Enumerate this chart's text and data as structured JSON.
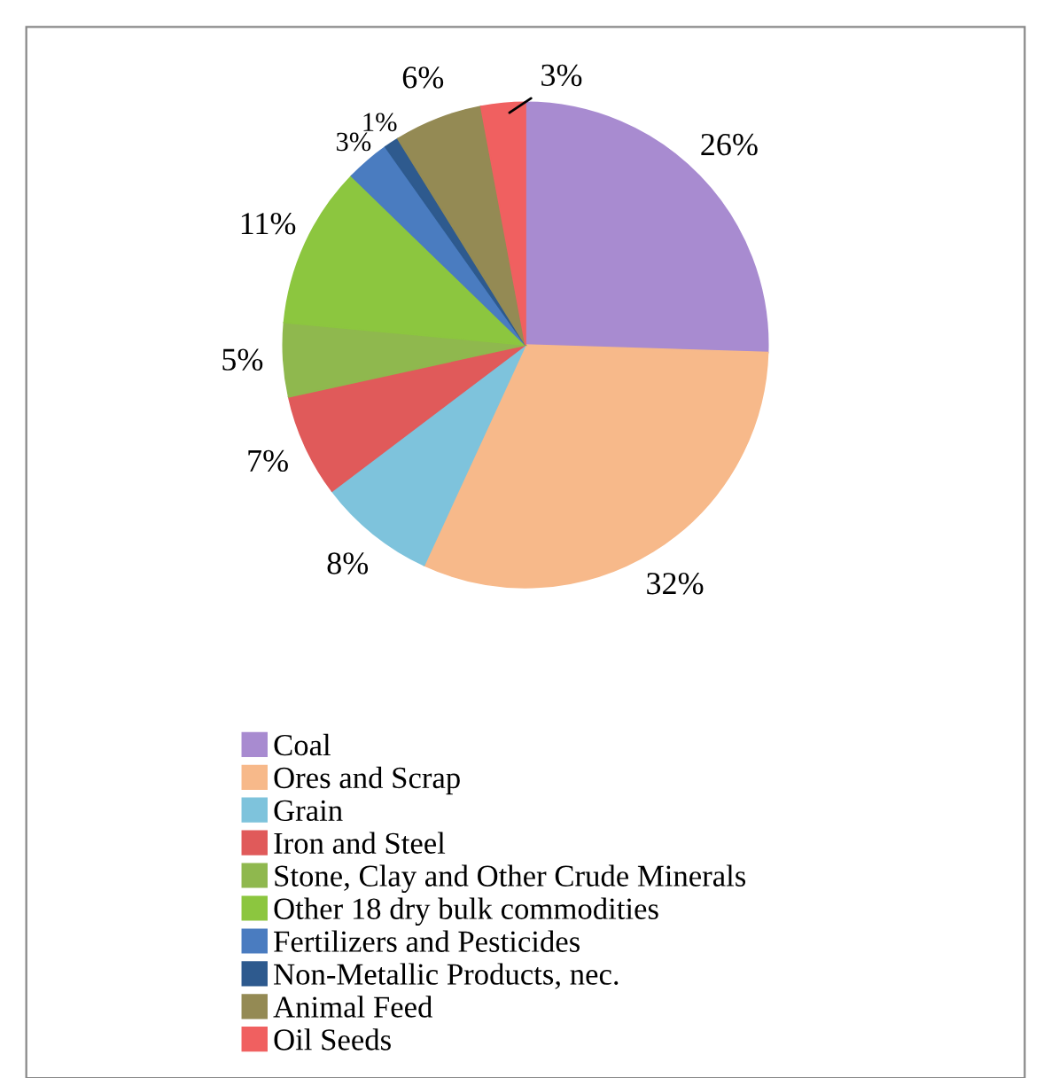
{
  "chart_data": {
    "type": "pie",
    "categories": [
      "Coal",
      "Ores and Scrap",
      "Grain",
      "Iron and Steel",
      "Stone, Clay and Other Crude Minerals",
      "Other 18 dry bulk commodities",
      "Fertilizers and Pesticides",
      "Non-Metallic Products, nec.",
      "Animal Feed",
      "Oil Seeds"
    ],
    "values": [
      26,
      32,
      8,
      7,
      5,
      11,
      3,
      1,
      6,
      3
    ],
    "colors": [
      "#a88bd0",
      "#f7b98a",
      "#7ec3dc",
      "#e05a5a",
      "#8fb84e",
      "#8cc63f",
      "#4a7cc0",
      "#2e5a8e",
      "#948a54",
      "#f06060"
    ],
    "value_labels": [
      "26%",
      "32%",
      "8%",
      "7%",
      "5%",
      "11%",
      "3%",
      "1%",
      "6%",
      "3%"
    ],
    "legend": "bottom"
  }
}
